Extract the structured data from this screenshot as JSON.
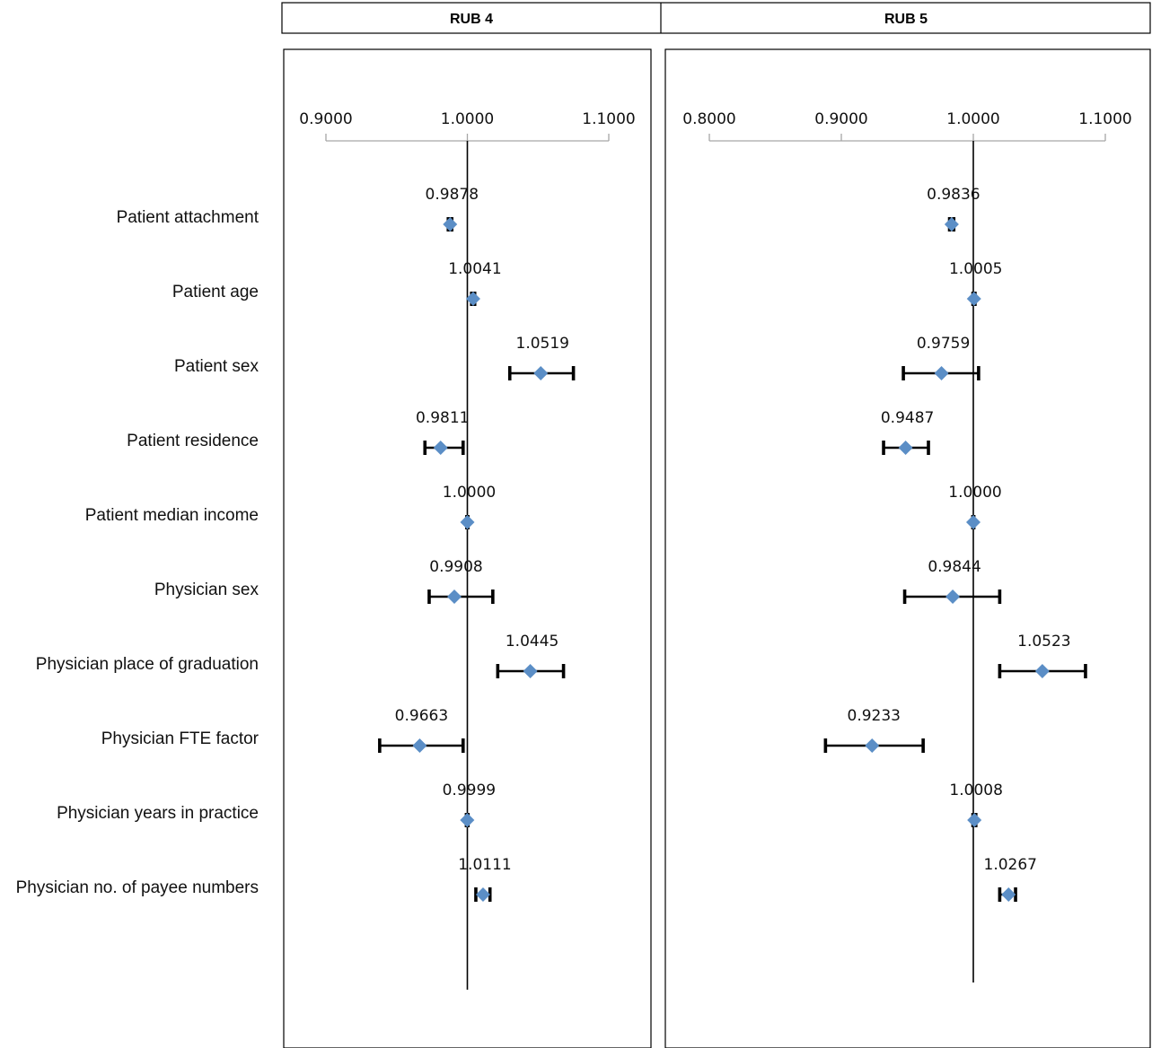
{
  "row_labels": [
    "Patient attachment",
    "Patient age",
    "Patient sex",
    "Patient residence",
    "Patient median income",
    "Physician sex",
    "Physician place of graduation",
    "Physician FTE factor",
    "Physician years in practice",
    "Physician no. of payee numbers"
  ],
  "colors": {
    "marker": "#5b8ec6",
    "error_bar": "#000000",
    "axis": "#a6a6a6",
    "reference_line": "#000000"
  },
  "chart_data": [
    {
      "type": "scatter",
      "title": "RUB 4",
      "xlim": [
        0.9,
        1.1
      ],
      "ticks": [
        0.9,
        1.0,
        1.1
      ],
      "tick_labels": [
        "0.9000",
        "1.0000",
        "1.1000"
      ],
      "reference_value": 1.0,
      "categories": [
        "Patient attachment",
        "Patient age",
        "Patient sex",
        "Patient residence",
        "Patient median income",
        "Physician sex",
        "Physician place of graduation",
        "Physician FTE factor",
        "Physician years in practice",
        "Physician no. of payee numbers"
      ],
      "values": [
        0.9878,
        1.0041,
        1.0519,
        0.9811,
        1.0,
        0.9908,
        1.0445,
        0.9663,
        0.9999,
        1.0111
      ],
      "value_labels": [
        "0.9878",
        "1.0041",
        "1.0519",
        "0.9811",
        "1.0000",
        "0.9908",
        "1.0445",
        "0.9663",
        "0.9999",
        "1.0111"
      ],
      "ci_low": [
        0.9865,
        1.003,
        1.03,
        0.97,
        0.9996,
        0.973,
        1.0215,
        0.938,
        0.9993,
        1.006
      ],
      "ci_high": [
        0.989,
        1.0052,
        1.075,
        0.997,
        1.0004,
        1.018,
        1.068,
        0.997,
        1.0005,
        1.016
      ]
    },
    {
      "type": "scatter",
      "title": "RUB 5",
      "xlim": [
        0.8,
        1.1
      ],
      "ticks": [
        0.8,
        0.9,
        1.0,
        1.1
      ],
      "tick_labels": [
        "0.8000",
        "0.9000",
        "1.0000",
        "1.1000"
      ],
      "reference_value": 1.0,
      "categories": [
        "Patient attachment",
        "Patient age",
        "Patient sex",
        "Patient residence",
        "Patient median income",
        "Physician sex",
        "Physician place of graduation",
        "Physician FTE factor",
        "Physician years in practice",
        "Physician no. of payee numbers"
      ],
      "values": [
        0.9836,
        1.0005,
        0.9759,
        0.9487,
        1.0,
        0.9844,
        1.0523,
        0.9233,
        1.0008,
        1.0267
      ],
      "value_labels": [
        "0.9836",
        "1.0005",
        "0.9759",
        "0.9487",
        "1.0000",
        "0.9844",
        "1.0523",
        "0.9233",
        "1.0008",
        "1.0267"
      ],
      "ci_low": [
        0.982,
        0.9997,
        0.947,
        0.932,
        0.9996,
        0.948,
        1.02,
        0.888,
        0.9997,
        1.02
      ],
      "ci_high": [
        0.9852,
        1.0013,
        1.004,
        0.966,
        1.0004,
        1.02,
        1.085,
        0.962,
        1.0019,
        1.032
      ]
    }
  ]
}
